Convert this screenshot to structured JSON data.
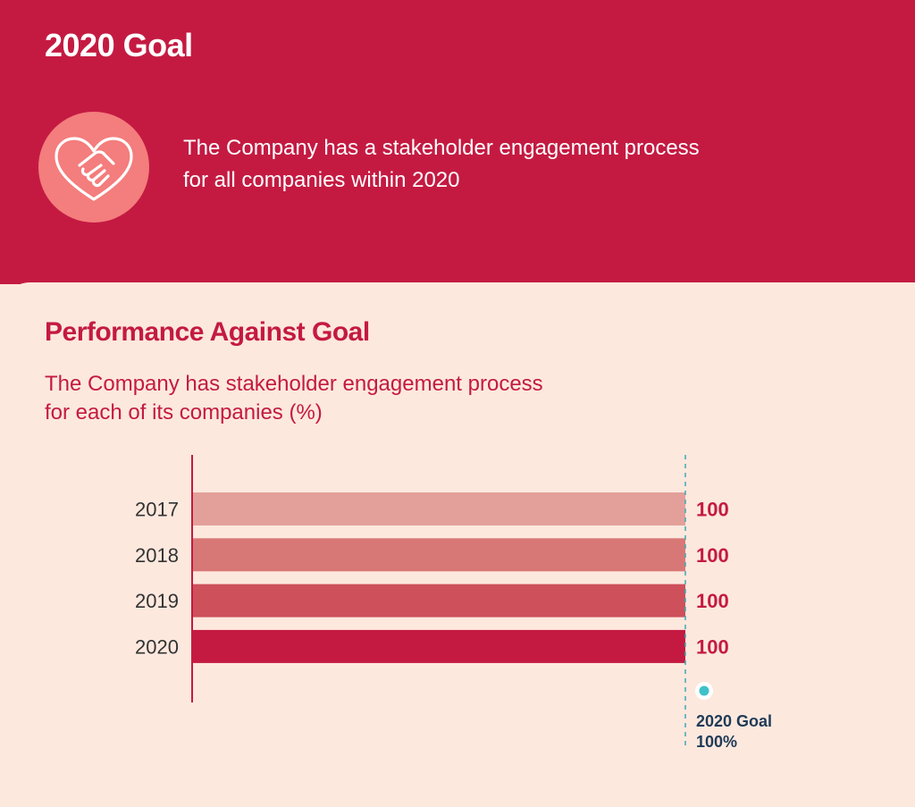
{
  "header": {
    "title": "2020 Goal",
    "description_lines": [
      "The Company has a stakeholder engagement process",
      "for all companies within 2020"
    ],
    "icon": "handshake-heart-icon"
  },
  "performance": {
    "title": "Performance Against Goal"
  },
  "chart_data": {
    "type": "bar",
    "orientation": "horizontal",
    "title_lines": [
      "The Company has stakeholder engagement process",
      "for each of its companies (%)"
    ],
    "categories": [
      "2017",
      "2018",
      "2019",
      "2020"
    ],
    "values": [
      100,
      100,
      100,
      100
    ],
    "value_labels": [
      "100",
      "100",
      "100",
      "100"
    ],
    "xlim": [
      0,
      100
    ],
    "grid": false,
    "bar_colors": [
      "#e3a09a",
      "#d87876",
      "#cd505b",
      "#c41a42"
    ],
    "goal": {
      "value": 100,
      "label_lines": [
        "2020 Goal",
        "100%"
      ],
      "marker_color": "#3fc1c9"
    }
  },
  "colors": {
    "brand_red": "#c41a42",
    "icon_circle": "#f47d7d",
    "background": "#fde8de",
    "goal_text": "#1f3b57"
  }
}
